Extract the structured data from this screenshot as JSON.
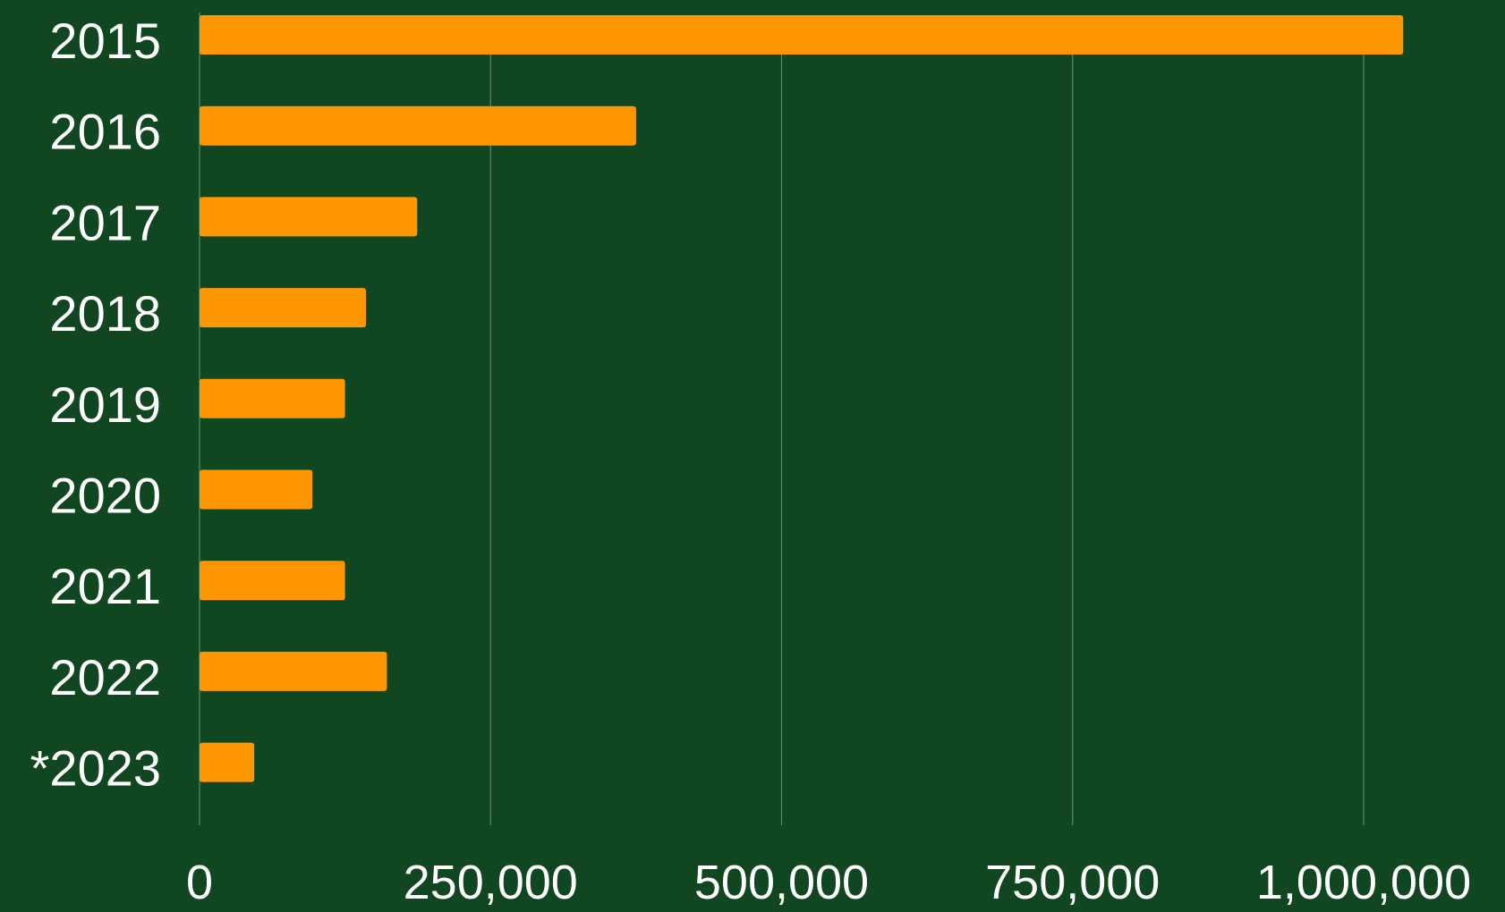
{
  "background_color": "#104620",
  "bar_color": "#ff9800",
  "grid_color": "#5f8a6c",
  "text_color": "#ffffff",
  "chart_data": {
    "type": "bar",
    "orientation": "horizontal",
    "categories": [
      "2015",
      "2016",
      "2017",
      "2018",
      "2019",
      "2020",
      "2021",
      "2022",
      "*2023"
    ],
    "values": [
      1034000,
      375000,
      187000,
      143000,
      125000,
      97000,
      125000,
      161000,
      47000
    ],
    "xlim": [
      0,
      1000000
    ],
    "xticks": [
      0,
      250000,
      500000,
      750000,
      1000000
    ],
    "xtick_labels": [
      "0",
      "250,000",
      "500,000",
      "750,000",
      "1,000,000"
    ],
    "grid": "vertical",
    "legend": "none",
    "title": "",
    "xlabel": "",
    "ylabel": ""
  }
}
